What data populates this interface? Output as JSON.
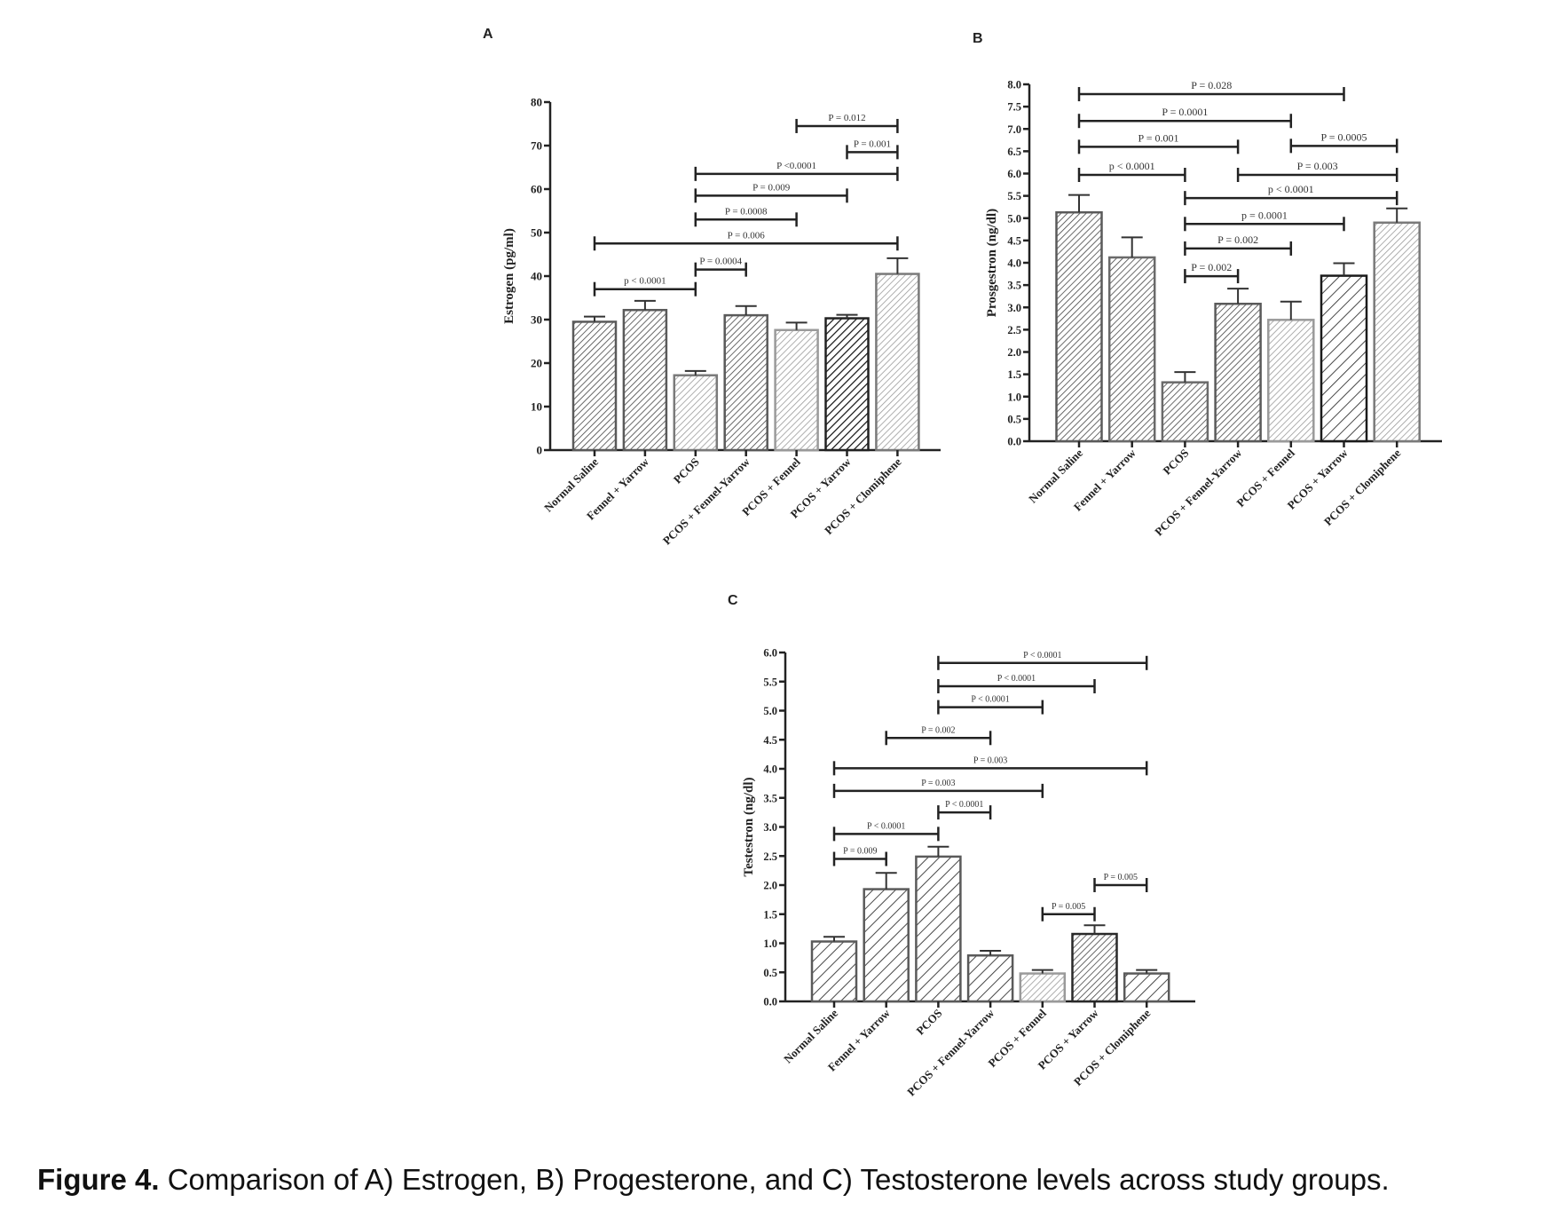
{
  "caption": {
    "label": "Figure 4.",
    "text": " Comparison of A) Estrogen, B) Progesterone, and C) Testosterone levels across study groups."
  },
  "chart_data": [
    {
      "panel": "A",
      "type": "bar",
      "ylabel": "Estrogen (pg/ml)",
      "xlabel": "",
      "ylim": [
        0,
        80
      ],
      "yticks": [
        "0",
        "10",
        "20",
        "30",
        "40",
        "50",
        "60",
        "70",
        "80"
      ],
      "ytick_values": [
        0,
        10,
        20,
        30,
        40,
        50,
        60,
        70,
        80
      ],
      "categories": [
        "Normal Saline",
        "Fennel + Yarrow",
        "PCOS",
        "PCOS + Fennel-Yarrow",
        "PCOS + Fennel",
        "PCOS + Yarrow",
        "PCOS + Clomiphene"
      ],
      "values": [
        29.5,
        32.2,
        17.2,
        31.0,
        27.6,
        30.3,
        40.5
      ],
      "error_upper": [
        30.7,
        34.3,
        18.2,
        33.1,
        29.3,
        31.1,
        44.1
      ],
      "bar_shades": [
        "#5a5a5a",
        "#5a5a5a",
        "#7a7a7a",
        "#5a5a5a",
        "#9a9a9a",
        "#222222",
        "#7a7a7a"
      ],
      "significance": [
        {
          "from": 4,
          "to": 6,
          "y": 74.5,
          "label": "P = 0.012"
        },
        {
          "from": 5,
          "to": 6,
          "y": 68.5,
          "label": "P = 0.001"
        },
        {
          "from": 2,
          "to": 6,
          "y": 63.5,
          "label": "P <0.0001"
        },
        {
          "from": 2,
          "to": 5,
          "y": 58.5,
          "label": "P = 0.009"
        },
        {
          "from": 2,
          "to": 4,
          "y": 53.0,
          "label": "P = 0.0008"
        },
        {
          "from": 0,
          "to": 6,
          "y": 47.5,
          "label": "P = 0.006"
        },
        {
          "from": 2,
          "to": 3,
          "y": 41.5,
          "label": "P = 0.0004"
        },
        {
          "from": 0,
          "to": 2,
          "y": 37.0,
          "label": "p < 0.0001"
        }
      ]
    },
    {
      "panel": "B",
      "type": "bar",
      "ylabel": "Prosgestron (ng/dl)",
      "xlabel": "",
      "ylim": [
        0,
        8
      ],
      "yticks": [
        "0.0",
        "0.5",
        "1.0",
        "1.5",
        "2.0",
        "2.5",
        "3.0",
        "3.5",
        "4.0",
        "4.5",
        "5.0",
        "5.5",
        "6.0",
        "6.5",
        "7.0",
        "7.5",
        "8.0"
      ],
      "ytick_values": [
        0,
        0.5,
        1,
        1.5,
        2,
        2.5,
        3,
        3.5,
        4,
        4.5,
        5,
        5.5,
        6,
        6.5,
        7,
        7.5,
        8
      ],
      "categories": [
        "Normal Saline",
        "Fennel + Yarrow",
        "PCOS",
        "PCOS + Fennel-Yarrow",
        "PCOS + Fennel",
        "PCOS + Yarrow",
        "PCOS + Clomiphene"
      ],
      "values": [
        5.13,
        4.12,
        1.32,
        3.08,
        2.72,
        3.71,
        4.9
      ],
      "error_upper": [
        5.52,
        4.57,
        1.55,
        3.42,
        3.13,
        3.99,
        5.22
      ],
      "bar_shades": [
        "#5a5a5a",
        "#6a6a6a",
        "#6a6a6a",
        "#5a5a5a",
        "#9a9a9a",
        "#1a1a1a",
        "#7a7a7a"
      ],
      "significance": [
        {
          "from": 0,
          "to": 5,
          "y": 7.78,
          "label": "P = 0.028"
        },
        {
          "from": 0,
          "to": 4,
          "y": 7.18,
          "label": "P = 0.0001"
        },
        {
          "from": 0,
          "to": 3,
          "y": 6.6,
          "label": "P = 0.001"
        },
        {
          "from": 4,
          "to": 6,
          "y": 6.62,
          "label": "P = 0.0005"
        },
        {
          "from": 0,
          "to": 2,
          "y": 5.97,
          "label": "p < 0.0001"
        },
        {
          "from": 3,
          "to": 6,
          "y": 5.97,
          "label": "P = 0.003"
        },
        {
          "from": 2,
          "to": 6,
          "y": 5.45,
          "label": "p < 0.0001"
        },
        {
          "from": 2,
          "to": 5,
          "y": 4.87,
          "label": "p = 0.0001"
        },
        {
          "from": 2,
          "to": 4,
          "y": 4.32,
          "label": "P = 0.002"
        },
        {
          "from": 2,
          "to": 3,
          "y": 3.7,
          "label": "P = 0.002"
        }
      ]
    },
    {
      "panel": "C",
      "type": "bar",
      "ylabel": "Testestron (ng/dl)",
      "xlabel": "",
      "ylim": [
        0,
        6
      ],
      "yticks": [
        "0.0",
        "0.5",
        "1.0",
        "1.5",
        "2.0",
        "2.5",
        "3.0",
        "3.5",
        "4.0",
        "4.5",
        "5.0",
        "5.5",
        "6.0"
      ],
      "ytick_values": [
        0,
        0.5,
        1,
        1.5,
        2,
        2.5,
        3,
        3.5,
        4,
        4.5,
        5,
        5.5,
        6
      ],
      "categories": [
        "Normal Saline",
        "Fennel + Yarrow",
        "PCOS",
        "PCOS + Fennel-Yarrow",
        "PCOS + Fennel",
        "PCOS + Yarrow",
        "PCOS + Clomiphene"
      ],
      "values": [
        1.03,
        1.93,
        2.49,
        0.79,
        0.48,
        1.16,
        0.48
      ],
      "error_upper": [
        1.11,
        2.21,
        2.66,
        0.87,
        0.54,
        1.31,
        0.54
      ],
      "bar_shades": [
        "#5a5a5a",
        "#5a5a5a",
        "#5a5a5a",
        "#5a5a5a",
        "#9a9a9a",
        "#2a2a2a",
        "#5a5a5a"
      ],
      "significance": [
        {
          "from": 2,
          "to": 6,
          "y": 5.82,
          "label": "P < 0.0001"
        },
        {
          "from": 2,
          "to": 5,
          "y": 5.42,
          "label": "P < 0.0001"
        },
        {
          "from": 2,
          "to": 4,
          "y": 5.06,
          "label": "P < 0.0001"
        },
        {
          "from": 1,
          "to": 3,
          "y": 4.53,
          "label": "P = 0.002"
        },
        {
          "from": 0,
          "to": 6,
          "y": 4.01,
          "label": "P = 0.003"
        },
        {
          "from": 0,
          "to": 4,
          "y": 3.62,
          "label": "P = 0.003"
        },
        {
          "from": 2,
          "to": 3,
          "y": 3.25,
          "label": "P < 0.0001"
        },
        {
          "from": 0,
          "to": 2,
          "y": 2.88,
          "label": "P < 0.0001"
        },
        {
          "from": 0,
          "to": 1,
          "y": 2.45,
          "label": "P = 0.009"
        },
        {
          "from": 5,
          "to": 6,
          "y": 2.0,
          "label": "P = 0.005"
        },
        {
          "from": 4,
          "to": 5,
          "y": 1.5,
          "label": "P = 0.005"
        }
      ]
    }
  ]
}
